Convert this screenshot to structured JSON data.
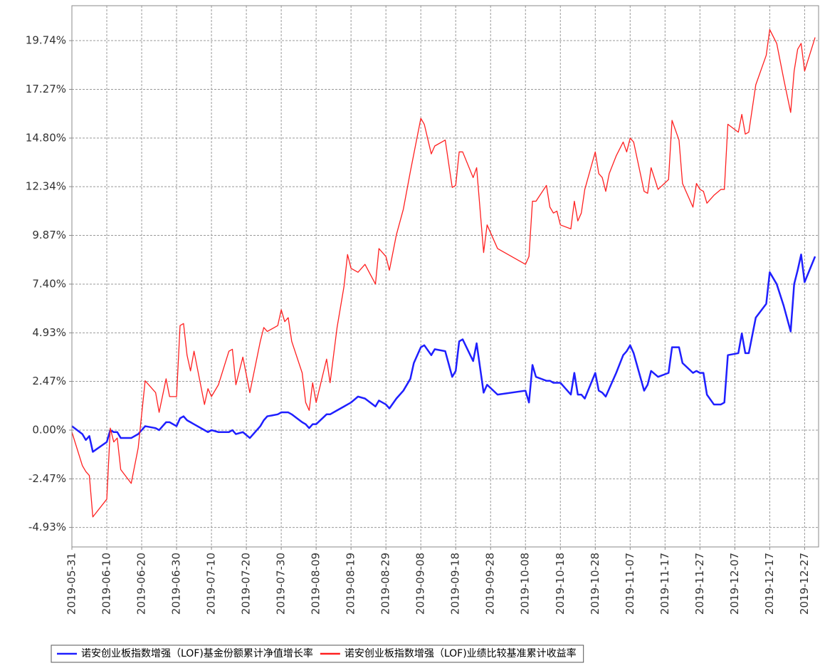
{
  "chart_data": {
    "type": "line",
    "x": [
      "2019-05-31",
      "2019-06-03",
      "2019-06-04",
      "2019-06-05",
      "2019-06-06",
      "2019-06-10",
      "2019-06-11",
      "2019-06-12",
      "2019-06-13",
      "2019-06-14",
      "2019-06-17",
      "2019-06-19",
      "2019-06-21",
      "2019-06-24",
      "2019-06-25",
      "2019-06-27",
      "2019-06-28",
      "2019-06-30",
      "2019-07-01",
      "2019-07-02",
      "2019-07-03",
      "2019-07-04",
      "2019-07-05",
      "2019-07-08",
      "2019-07-09",
      "2019-07-10",
      "2019-07-12",
      "2019-07-15",
      "2019-07-16",
      "2019-07-17",
      "2019-07-19",
      "2019-07-21",
      "2019-07-24",
      "2019-07-25",
      "2019-07-26",
      "2019-07-29",
      "2019-07-30",
      "2019-07-31",
      "2019-08-01",
      "2019-08-02",
      "2019-08-05",
      "2019-08-06",
      "2019-08-07",
      "2019-08-08",
      "2019-08-09",
      "2019-08-12",
      "2019-08-13",
      "2019-08-15",
      "2019-08-17",
      "2019-08-18",
      "2019-08-19",
      "2019-08-21",
      "2019-08-23",
      "2019-08-26",
      "2019-08-27",
      "2019-08-29",
      "2019-08-30",
      "2019-09-01",
      "2019-09-03",
      "2019-09-05",
      "2019-09-06",
      "2019-09-08",
      "2019-09-09",
      "2019-09-11",
      "2019-09-12",
      "2019-09-15",
      "2019-09-17",
      "2019-09-18",
      "2019-09-19",
      "2019-09-20",
      "2019-09-23",
      "2019-09-24",
      "2019-09-26",
      "2019-09-27",
      "2019-09-30",
      "2019-10-08",
      "2019-10-09",
      "2019-10-10",
      "2019-10-11",
      "2019-10-14",
      "2019-10-15",
      "2019-10-16",
      "2019-10-17",
      "2019-10-18",
      "2019-10-21",
      "2019-10-22",
      "2019-10-23",
      "2019-10-24",
      "2019-10-25",
      "2019-10-28",
      "2019-10-29",
      "2019-10-30",
      "2019-10-31",
      "2019-11-01",
      "2019-11-03",
      "2019-11-05",
      "2019-11-06",
      "2019-11-07",
      "2019-11-08",
      "2019-11-11",
      "2019-11-12",
      "2019-11-13",
      "2019-11-15",
      "2019-11-18",
      "2019-11-19",
      "2019-11-21",
      "2019-11-22",
      "2019-11-25",
      "2019-11-26",
      "2019-11-27",
      "2019-11-28",
      "2019-11-29",
      "2019-12-01",
      "2019-12-03",
      "2019-12-04",
      "2019-12-05",
      "2019-12-08",
      "2019-12-09",
      "2019-12-10",
      "2019-12-11",
      "2019-12-13",
      "2019-12-16",
      "2019-12-17",
      "2019-12-19",
      "2019-12-21",
      "2019-12-23",
      "2019-12-24",
      "2019-12-25",
      "2019-12-26",
      "2019-12-27",
      "2019-12-30"
    ],
    "series": [
      {
        "name": "诺安创业板指数增强（LOF)基金份额累计净值增长率",
        "color": "#1f1fff",
        "values": [
          0.2,
          -0.2,
          -0.5,
          -0.3,
          -1.1,
          -0.6,
          0.0,
          -0.1,
          -0.1,
          -0.4,
          -0.4,
          -0.2,
          0.2,
          0.1,
          0.0,
          0.4,
          0.4,
          0.2,
          0.6,
          0.7,
          0.5,
          0.4,
          0.3,
          0.0,
          -0.1,
          0.0,
          -0.1,
          -0.1,
          0.0,
          -0.2,
          -0.1,
          -0.4,
          0.2,
          0.5,
          0.7,
          0.8,
          0.9,
          0.9,
          0.9,
          0.8,
          0.4,
          0.3,
          0.1,
          0.3,
          0.3,
          0.8,
          0.8,
          1.0,
          1.2,
          1.3,
          1.4,
          1.7,
          1.6,
          1.2,
          1.5,
          1.3,
          1.1,
          1.6,
          2.0,
          2.6,
          3.4,
          4.2,
          4.3,
          3.8,
          4.1,
          4.0,
          2.7,
          3.0,
          4.5,
          4.6,
          3.5,
          4.4,
          1.9,
          2.3,
          1.8,
          2.0,
          1.4,
          3.3,
          2.7,
          2.5,
          2.5,
          2.4,
          2.4,
          2.4,
          1.8,
          2.9,
          1.8,
          1.8,
          1.6,
          2.9,
          2.0,
          1.9,
          1.7,
          2.1,
          2.9,
          3.8,
          4.0,
          4.3,
          3.9,
          2.0,
          2.3,
          3.0,
          2.7,
          2.9,
          4.2,
          4.2,
          3.4,
          2.9,
          3.0,
          2.9,
          2.9,
          1.8,
          1.3,
          1.3,
          1.4,
          3.8,
          3.9,
          4.9,
          3.9,
          3.9,
          5.7,
          6.4,
          8.0,
          7.4,
          6.3,
          5.0,
          7.4,
          8.1,
          8.9,
          7.5,
          8.8
        ]
      },
      {
        "name": "诺安创业板指数增强（LOF)业绩比较基准累计收益率",
        "color": "#ff2020",
        "values": [
          -0.1,
          -1.8,
          -2.1,
          -2.3,
          -4.4,
          -3.5,
          0.1,
          -0.6,
          -0.4,
          -2.0,
          -2.7,
          -0.9,
          2.5,
          1.9,
          0.9,
          2.6,
          1.7,
          1.7,
          5.3,
          5.4,
          3.8,
          3.0,
          4.0,
          1.3,
          2.1,
          1.7,
          2.3,
          4.0,
          4.1,
          2.3,
          3.7,
          1.9,
          4.5,
          5.2,
          5.0,
          5.3,
          6.1,
          5.5,
          5.7,
          4.5,
          2.9,
          1.4,
          1.0,
          2.4,
          1.4,
          3.6,
          2.4,
          5.2,
          7.3,
          8.9,
          8.2,
          8.0,
          8.4,
          7.4,
          9.2,
          8.8,
          8.1,
          9.9,
          11.2,
          13.1,
          14.0,
          15.8,
          15.5,
          14.0,
          14.4,
          14.7,
          12.3,
          12.4,
          14.1,
          14.1,
          12.8,
          13.3,
          9.0,
          10.4,
          9.2,
          8.4,
          8.8,
          11.6,
          11.6,
          12.4,
          11.3,
          11.0,
          11.1,
          10.4,
          10.2,
          11.6,
          10.6,
          11.0,
          12.2,
          14.1,
          13.0,
          12.8,
          12.1,
          13.0,
          13.9,
          14.6,
          14.1,
          14.8,
          14.6,
          12.1,
          12.0,
          13.3,
          12.2,
          12.7,
          15.7,
          14.7,
          12.5,
          11.3,
          12.5,
          12.2,
          12.1,
          11.5,
          11.9,
          12.2,
          12.2,
          15.5,
          15.1,
          16.0,
          15.0,
          15.1,
          17.5,
          19.0,
          20.3,
          19.6,
          17.8,
          16.1,
          18.2,
          19.3,
          19.6,
          18.2,
          19.9
        ]
      }
    ],
    "xlim": [
      "2019-05-31",
      "2019-12-31"
    ],
    "xticks": [
      "2019-05-31",
      "2019-06-10",
      "2019-06-20",
      "2019-06-30",
      "2019-07-10",
      "2019-07-20",
      "2019-07-30",
      "2019-08-09",
      "2019-08-19",
      "2019-08-29",
      "2019-09-08",
      "2019-09-18",
      "2019-09-28",
      "2019-10-08",
      "2019-10-18",
      "2019-10-28",
      "2019-11-07",
      "2019-11-17",
      "2019-11-27",
      "2019-12-07",
      "2019-12-17",
      "2019-12-27"
    ],
    "ylim": [
      -5.92,
      21.51
    ],
    "yticks": [
      {
        "value": -4.93,
        "label": "-4.93%"
      },
      {
        "value": -2.47,
        "label": "-2.47%"
      },
      {
        "value": 0,
        "label": "0.00%"
      },
      {
        "value": 2.47,
        "label": "2.47%"
      },
      {
        "value": 4.93,
        "label": "4.93%"
      },
      {
        "value": 7.4,
        "label": "7.40%"
      },
      {
        "value": 9.87,
        "label": "9.87%"
      },
      {
        "value": 12.34,
        "label": "12.34%"
      },
      {
        "value": 14.8,
        "label": "14.80%"
      },
      {
        "value": 17.27,
        "label": "17.27%"
      },
      {
        "value": 19.74,
        "label": "19.74%"
      }
    ],
    "grid": true,
    "legend": "bottom"
  }
}
